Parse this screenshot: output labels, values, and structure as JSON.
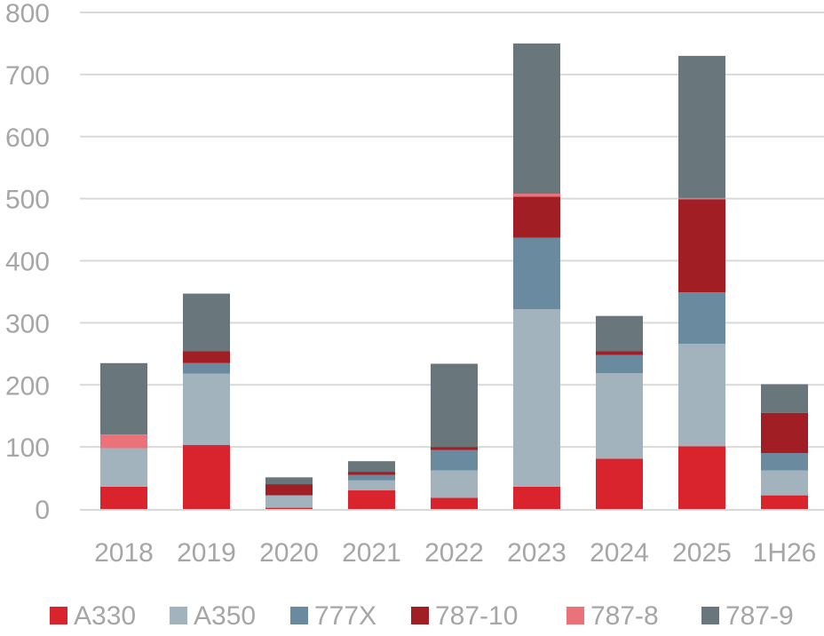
{
  "chart_data": {
    "type": "bar",
    "stacked": true,
    "title": "",
    "xlabel": "",
    "ylabel": "",
    "ylim": [
      0,
      800
    ],
    "yticks": [
      0,
      100,
      200,
      300,
      400,
      500,
      600,
      700,
      800
    ],
    "grid": true,
    "legend": "bottom",
    "categories": [
      "2018",
      "2019",
      "2020",
      "2021",
      "2022",
      "2023",
      "2024",
      "2025",
      "1H26"
    ],
    "series": [
      {
        "name": "A330",
        "color": "#d9232d",
        "values": [
          36,
          103,
          2,
          30,
          18,
          36,
          81,
          101,
          22
        ]
      },
      {
        "name": "A350",
        "color": "#a2b3bd",
        "values": [
          62,
          115,
          20,
          16,
          44,
          286,
          138,
          165,
          40
        ]
      },
      {
        "name": "777X",
        "color": "#6a8a9f",
        "values": [
          0,
          17,
          0,
          9,
          33,
          115,
          29,
          83,
          28
        ]
      },
      {
        "name": "787-10",
        "color": "#a01e24",
        "values": [
          0,
          19,
          18,
          5,
          5,
          66,
          6,
          150,
          65
        ]
      },
      {
        "name": "787-8",
        "color": "#ec7279",
        "values": [
          22,
          0,
          0,
          0,
          0,
          5,
          0,
          2,
          0
        ]
      },
      {
        "name": "787-9",
        "color": "#69777d",
        "values": [
          115,
          93,
          11,
          17,
          134,
          242,
          57,
          229,
          46
        ]
      }
    ]
  }
}
